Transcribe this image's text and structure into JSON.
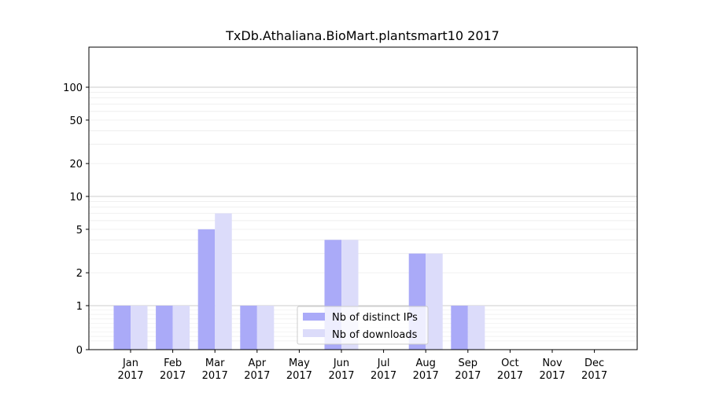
{
  "chart_data": {
    "type": "bar",
    "title": "TxDb.Athaliana.BioMart.plantsmart10 2017",
    "xlabel": "",
    "ylabel": "",
    "y_scale": "symlog",
    "ylim": [
      0,
      120
    ],
    "y_ticks": [
      0,
      1,
      2,
      5,
      10,
      20,
      50,
      100
    ],
    "y_tick_labels": [
      "0",
      "1",
      "2",
      "5",
      "10",
      "20",
      "50",
      "100"
    ],
    "grid": "horizontal",
    "categories": [
      [
        "Jan",
        "2017"
      ],
      [
        "Feb",
        "2017"
      ],
      [
        "Mar",
        "2017"
      ],
      [
        "Apr",
        "2017"
      ],
      [
        "May",
        "2017"
      ],
      [
        "Jun",
        "2017"
      ],
      [
        "Jul",
        "2017"
      ],
      [
        "Aug",
        "2017"
      ],
      [
        "Sep",
        "2017"
      ],
      [
        "Oct",
        "2017"
      ],
      [
        "Nov",
        "2017"
      ],
      [
        "Dec",
        "2017"
      ]
    ],
    "series": [
      {
        "name": "Nb of distinct IPs",
        "color": "#aaaaf8",
        "values": [
          1,
          1,
          5,
          1,
          0,
          4,
          0,
          3,
          1,
          0,
          0,
          0
        ]
      },
      {
        "name": "Nb of downloads",
        "color": "#dcdcfa",
        "values": [
          1,
          1,
          7,
          1,
          0,
          4,
          0,
          3,
          1,
          0,
          0,
          0
        ]
      }
    ],
    "legend_position": "bottom-center"
  }
}
